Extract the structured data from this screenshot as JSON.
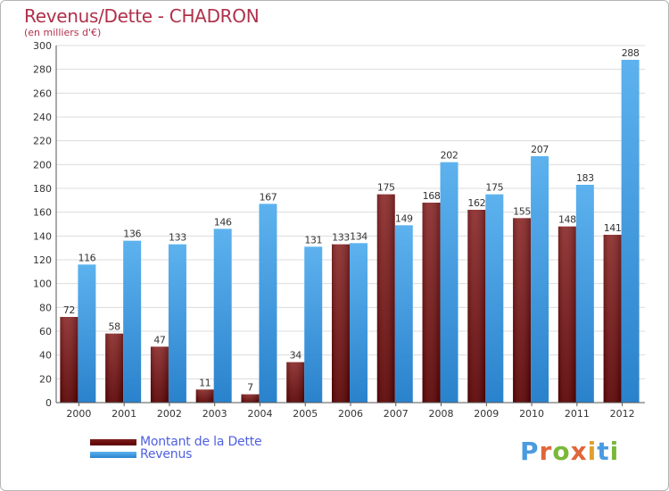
{
  "header": {
    "title": "Revenus/Dette - CHADRON",
    "subtitle": "(en milliers d'€)"
  },
  "chart_data": {
    "type": "bar",
    "title": "Revenus/Dette - CHADRON",
    "ylabel": "(en milliers d'€)",
    "xlabel": "",
    "ylim": [
      0,
      300
    ],
    "yticks": [
      0,
      20,
      40,
      60,
      80,
      100,
      120,
      140,
      160,
      180,
      200,
      220,
      240,
      260,
      280,
      300
    ],
    "grid": true,
    "legend_position": "bottom-left",
    "categories": [
      "2000",
      "2001",
      "2002",
      "2003",
      "2004",
      "2005",
      "2006",
      "2007",
      "2008",
      "2009",
      "2010",
      "2011",
      "2012"
    ],
    "series": [
      {
        "name": "Montant de la Dette",
        "color": "#7a1a1a",
        "values": [
          72,
          58,
          47,
          11,
          7,
          34,
          133,
          175,
          168,
          162,
          155,
          148,
          141
        ]
      },
      {
        "name": "Revenus",
        "color": "#4aa6e6",
        "values": [
          116,
          136,
          133,
          146,
          167,
          131,
          134,
          149,
          202,
          175,
          207,
          183,
          288
        ]
      }
    ]
  },
  "legend": {
    "items": [
      {
        "label": "Montant de la Dette",
        "color": "#6e0f0f"
      },
      {
        "label": "Revenus",
        "color": "#3a9ae0"
      }
    ]
  },
  "logo": {
    "text": "Proxiti"
  }
}
